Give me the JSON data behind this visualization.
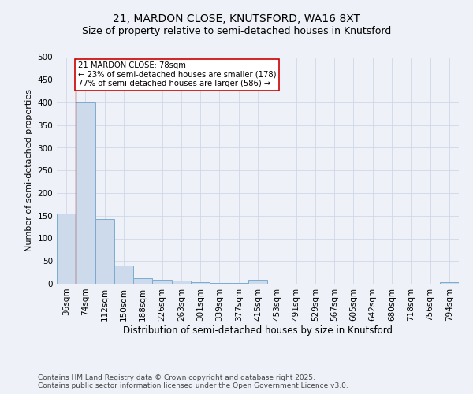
{
  "title1": "21, MARDON CLOSE, KNUTSFORD, WA16 8XT",
  "title2": "Size of property relative to semi-detached houses in Knutsford",
  "xlabel": "Distribution of semi-detached houses by size in Knutsford",
  "ylabel": "Number of semi-detached properties",
  "categories": [
    "36sqm",
    "74sqm",
    "112sqm",
    "150sqm",
    "188sqm",
    "226sqm",
    "263sqm",
    "301sqm",
    "339sqm",
    "377sqm",
    "415sqm",
    "453sqm",
    "491sqm",
    "529sqm",
    "567sqm",
    "605sqm",
    "642sqm",
    "680sqm",
    "718sqm",
    "756sqm",
    "794sqm"
  ],
  "values": [
    155,
    400,
    143,
    40,
    12,
    8,
    7,
    4,
    2,
    2,
    8,
    0,
    0,
    0,
    0,
    0,
    0,
    0,
    0,
    0,
    3
  ],
  "bar_color": "#cddaeb",
  "bar_edge_color": "#7aaccf",
  "annotation_title": "21 MARDON CLOSE: 78sqm",
  "annotation_line1": "← 23% of semi-detached houses are smaller (178)",
  "annotation_line2": "77% of semi-detached houses are larger (586) →",
  "vline_color": "#8b1a1a",
  "annotation_box_color": "#ffffff",
  "annotation_box_edge": "#cc0000",
  "footer1": "Contains HM Land Registry data © Crown copyright and database right 2025.",
  "footer2": "Contains public sector information licensed under the Open Government Licence v3.0.",
  "ylim": [
    0,
    500
  ],
  "yticks": [
    0,
    50,
    100,
    150,
    200,
    250,
    300,
    350,
    400,
    450,
    500
  ],
  "background_color": "#eef2f8",
  "grid_color": "#d0d8e8",
  "title1_fontsize": 10,
  "title2_fontsize": 9,
  "xlabel_fontsize": 8.5,
  "ylabel_fontsize": 8,
  "tick_fontsize": 7.5,
  "footer_fontsize": 6.5
}
